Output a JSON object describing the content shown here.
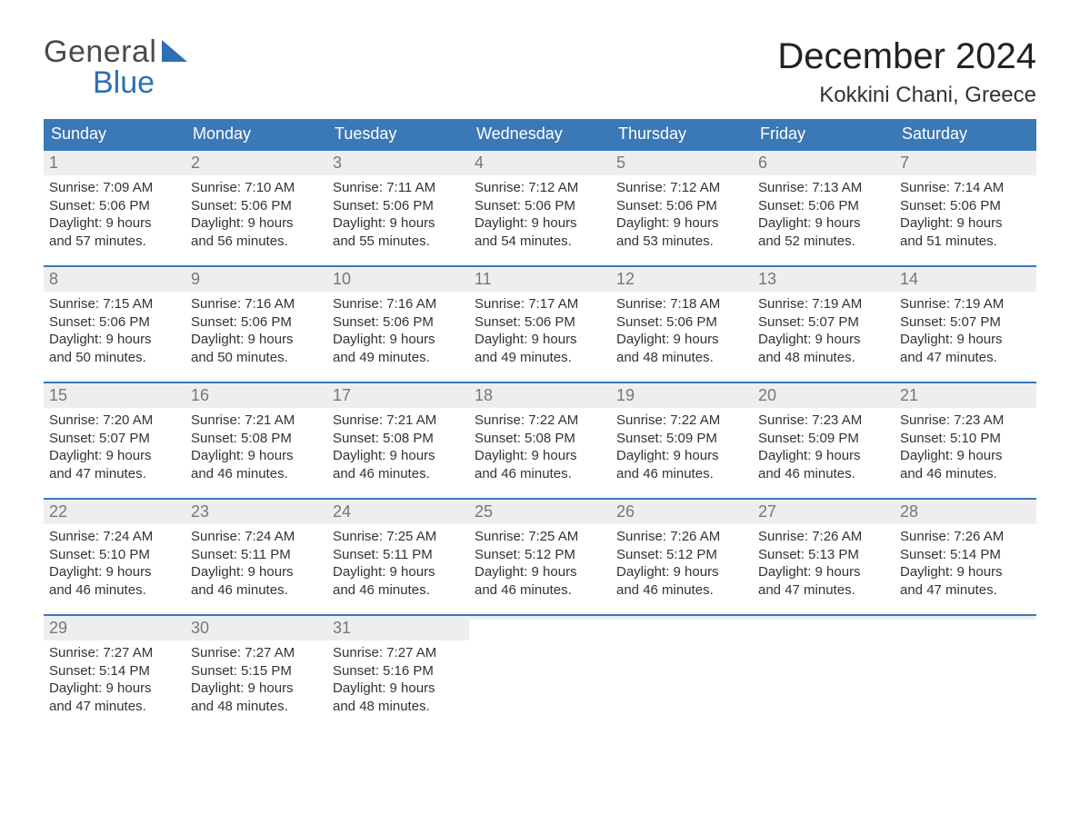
{
  "brand": {
    "line1": "General",
    "line2": "Blue"
  },
  "title": "December 2024",
  "location": "Kokkini Chani, Greece",
  "colors": {
    "header_bg": "#3a78b6",
    "header_text": "#ffffff",
    "daynum_bg": "#eeeeee",
    "daynum_text": "#777777",
    "body_text": "#333333",
    "week_border": "#3a78b6",
    "brand_blue": "#2e6fb3",
    "page_bg": "#ffffff"
  },
  "typography": {
    "title_fontsize": 40,
    "location_fontsize": 24,
    "dow_fontsize": 18,
    "daynum_fontsize": 18,
    "body_fontsize": 15,
    "logo_fontsize": 34,
    "font_family": "Arial"
  },
  "days_of_week": [
    "Sunday",
    "Monday",
    "Tuesday",
    "Wednesday",
    "Thursday",
    "Friday",
    "Saturday"
  ],
  "weeks": [
    [
      {
        "n": "1",
        "sr": "Sunrise: 7:09 AM",
        "ss": "Sunset: 5:06 PM",
        "d1": "Daylight: 9 hours",
        "d2": "and 57 minutes."
      },
      {
        "n": "2",
        "sr": "Sunrise: 7:10 AM",
        "ss": "Sunset: 5:06 PM",
        "d1": "Daylight: 9 hours",
        "d2": "and 56 minutes."
      },
      {
        "n": "3",
        "sr": "Sunrise: 7:11 AM",
        "ss": "Sunset: 5:06 PM",
        "d1": "Daylight: 9 hours",
        "d2": "and 55 minutes."
      },
      {
        "n": "4",
        "sr": "Sunrise: 7:12 AM",
        "ss": "Sunset: 5:06 PM",
        "d1": "Daylight: 9 hours",
        "d2": "and 54 minutes."
      },
      {
        "n": "5",
        "sr": "Sunrise: 7:12 AM",
        "ss": "Sunset: 5:06 PM",
        "d1": "Daylight: 9 hours",
        "d2": "and 53 minutes."
      },
      {
        "n": "6",
        "sr": "Sunrise: 7:13 AM",
        "ss": "Sunset: 5:06 PM",
        "d1": "Daylight: 9 hours",
        "d2": "and 52 minutes."
      },
      {
        "n": "7",
        "sr": "Sunrise: 7:14 AM",
        "ss": "Sunset: 5:06 PM",
        "d1": "Daylight: 9 hours",
        "d2": "and 51 minutes."
      }
    ],
    [
      {
        "n": "8",
        "sr": "Sunrise: 7:15 AM",
        "ss": "Sunset: 5:06 PM",
        "d1": "Daylight: 9 hours",
        "d2": "and 50 minutes."
      },
      {
        "n": "9",
        "sr": "Sunrise: 7:16 AM",
        "ss": "Sunset: 5:06 PM",
        "d1": "Daylight: 9 hours",
        "d2": "and 50 minutes."
      },
      {
        "n": "10",
        "sr": "Sunrise: 7:16 AM",
        "ss": "Sunset: 5:06 PM",
        "d1": "Daylight: 9 hours",
        "d2": "and 49 minutes."
      },
      {
        "n": "11",
        "sr": "Sunrise: 7:17 AM",
        "ss": "Sunset: 5:06 PM",
        "d1": "Daylight: 9 hours",
        "d2": "and 49 minutes."
      },
      {
        "n": "12",
        "sr": "Sunrise: 7:18 AM",
        "ss": "Sunset: 5:06 PM",
        "d1": "Daylight: 9 hours",
        "d2": "and 48 minutes."
      },
      {
        "n": "13",
        "sr": "Sunrise: 7:19 AM",
        "ss": "Sunset: 5:07 PM",
        "d1": "Daylight: 9 hours",
        "d2": "and 48 minutes."
      },
      {
        "n": "14",
        "sr": "Sunrise: 7:19 AM",
        "ss": "Sunset: 5:07 PM",
        "d1": "Daylight: 9 hours",
        "d2": "and 47 minutes."
      }
    ],
    [
      {
        "n": "15",
        "sr": "Sunrise: 7:20 AM",
        "ss": "Sunset: 5:07 PM",
        "d1": "Daylight: 9 hours",
        "d2": "and 47 minutes."
      },
      {
        "n": "16",
        "sr": "Sunrise: 7:21 AM",
        "ss": "Sunset: 5:08 PM",
        "d1": "Daylight: 9 hours",
        "d2": "and 46 minutes."
      },
      {
        "n": "17",
        "sr": "Sunrise: 7:21 AM",
        "ss": "Sunset: 5:08 PM",
        "d1": "Daylight: 9 hours",
        "d2": "and 46 minutes."
      },
      {
        "n": "18",
        "sr": "Sunrise: 7:22 AM",
        "ss": "Sunset: 5:08 PM",
        "d1": "Daylight: 9 hours",
        "d2": "and 46 minutes."
      },
      {
        "n": "19",
        "sr": "Sunrise: 7:22 AM",
        "ss": "Sunset: 5:09 PM",
        "d1": "Daylight: 9 hours",
        "d2": "and 46 minutes."
      },
      {
        "n": "20",
        "sr": "Sunrise: 7:23 AM",
        "ss": "Sunset: 5:09 PM",
        "d1": "Daylight: 9 hours",
        "d2": "and 46 minutes."
      },
      {
        "n": "21",
        "sr": "Sunrise: 7:23 AM",
        "ss": "Sunset: 5:10 PM",
        "d1": "Daylight: 9 hours",
        "d2": "and 46 minutes."
      }
    ],
    [
      {
        "n": "22",
        "sr": "Sunrise: 7:24 AM",
        "ss": "Sunset: 5:10 PM",
        "d1": "Daylight: 9 hours",
        "d2": "and 46 minutes."
      },
      {
        "n": "23",
        "sr": "Sunrise: 7:24 AM",
        "ss": "Sunset: 5:11 PM",
        "d1": "Daylight: 9 hours",
        "d2": "and 46 minutes."
      },
      {
        "n": "24",
        "sr": "Sunrise: 7:25 AM",
        "ss": "Sunset: 5:11 PM",
        "d1": "Daylight: 9 hours",
        "d2": "and 46 minutes."
      },
      {
        "n": "25",
        "sr": "Sunrise: 7:25 AM",
        "ss": "Sunset: 5:12 PM",
        "d1": "Daylight: 9 hours",
        "d2": "and 46 minutes."
      },
      {
        "n": "26",
        "sr": "Sunrise: 7:26 AM",
        "ss": "Sunset: 5:12 PM",
        "d1": "Daylight: 9 hours",
        "d2": "and 46 minutes."
      },
      {
        "n": "27",
        "sr": "Sunrise: 7:26 AM",
        "ss": "Sunset: 5:13 PM",
        "d1": "Daylight: 9 hours",
        "d2": "and 47 minutes."
      },
      {
        "n": "28",
        "sr": "Sunrise: 7:26 AM",
        "ss": "Sunset: 5:14 PM",
        "d1": "Daylight: 9 hours",
        "d2": "and 47 minutes."
      }
    ],
    [
      {
        "n": "29",
        "sr": "Sunrise: 7:27 AM",
        "ss": "Sunset: 5:14 PM",
        "d1": "Daylight: 9 hours",
        "d2": "and 47 minutes."
      },
      {
        "n": "30",
        "sr": "Sunrise: 7:27 AM",
        "ss": "Sunset: 5:15 PM",
        "d1": "Daylight: 9 hours",
        "d2": "and 48 minutes."
      },
      {
        "n": "31",
        "sr": "Sunrise: 7:27 AM",
        "ss": "Sunset: 5:16 PM",
        "d1": "Daylight: 9 hours",
        "d2": "and 48 minutes."
      },
      null,
      null,
      null,
      null
    ]
  ]
}
